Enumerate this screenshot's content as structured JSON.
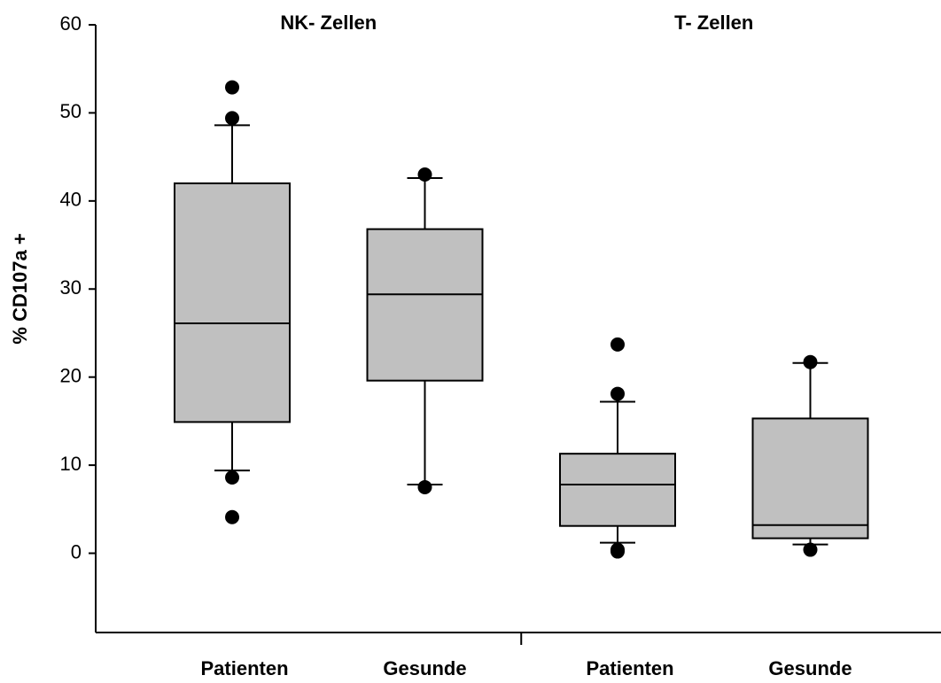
{
  "chart_data": {
    "type": "box",
    "ylabel": "% CD107a +",
    "groups": [
      "NK- Zellen",
      "T- Zellen"
    ],
    "categories": [
      "Patienten",
      "Gesunde",
      "Patienten",
      "Gesunde"
    ],
    "color": "#c0c0c0",
    "ylim": [
      -9,
      60
    ],
    "yticks": [
      0,
      10,
      20,
      30,
      40,
      50,
      60
    ],
    "boxes": [
      {
        "whislo": 9.4,
        "q1": 14.9,
        "median": 26.1,
        "q3": 42.0,
        "whishi": 48.6,
        "fliers": [
          52.9,
          49.4,
          8.6,
          4.1
        ]
      },
      {
        "whislo": 7.8,
        "q1": 19.6,
        "median": 29.4,
        "q3": 36.8,
        "whishi": 42.6,
        "fliers": [
          43.0,
          7.5
        ]
      },
      {
        "whislo": 1.2,
        "q1": 3.1,
        "median": 7.8,
        "q3": 11.3,
        "whishi": 17.2,
        "fliers": [
          23.7,
          18.1,
          0.4,
          0.2
        ]
      },
      {
        "whislo": 1.0,
        "q1": 1.7,
        "median": 3.2,
        "q3": 15.3,
        "whishi": 21.6,
        "fliers": [
          21.7,
          0.4
        ]
      }
    ]
  }
}
